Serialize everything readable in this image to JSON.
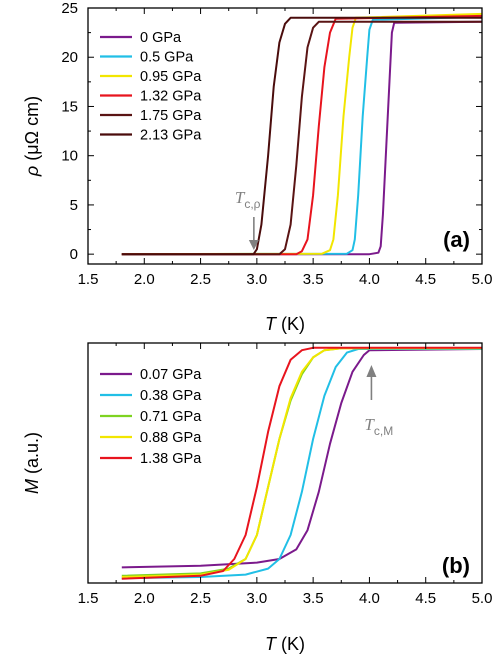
{
  "chart_data": [
    {
      "type": "line",
      "panel_label": "(a)",
      "xlabel_var": "T",
      "xlabel_unit": " (K)",
      "ylabel_var": "ρ",
      "ylabel_unit": " (μΩ cm)",
      "xlim": [
        1.5,
        5.0
      ],
      "ylim": [
        -1,
        25
      ],
      "xticks": [
        "1.5",
        "2.0",
        "2.5",
        "3.0",
        "3.5",
        "4.0",
        "4.5",
        "5.0"
      ],
      "yticks": [
        "0",
        "5",
        "10",
        "15",
        "20",
        "25"
      ],
      "grid": false,
      "legend_position": "top-left",
      "annotation": {
        "main": "T",
        "sub": "c,ρ",
        "x": 3.0
      },
      "series": [
        {
          "name": "0 GPa",
          "color": "#7b1a8c",
          "x": [
            1.8,
            4.0,
            4.08,
            4.1,
            4.12,
            4.15,
            4.18,
            4.2,
            4.22,
            5.0
          ],
          "y": [
            0.0,
            0.0,
            0.15,
            0.8,
            4.0,
            11.0,
            18.0,
            22.5,
            23.5,
            23.6
          ]
        },
        {
          "name": "0.5 GPa",
          "color": "#21bfe6",
          "x": [
            1.8,
            3.8,
            3.85,
            3.87,
            3.9,
            3.94,
            3.98,
            4.0,
            4.03,
            5.0
          ],
          "y": [
            0.0,
            0.05,
            0.4,
            1.5,
            6.0,
            14.0,
            20.0,
            22.8,
            23.8,
            24.1
          ]
        },
        {
          "name": "0.95 GPa",
          "color": "#f2e600",
          "x": [
            1.8,
            3.58,
            3.65,
            3.68,
            3.72,
            3.77,
            3.82,
            3.85,
            3.88,
            5.0
          ],
          "y": [
            0.0,
            0.05,
            0.4,
            1.5,
            6.0,
            14.0,
            20.0,
            23.0,
            24.0,
            24.4
          ]
        },
        {
          "name": "1.32 GPa",
          "color": "#e8141e",
          "x": [
            1.8,
            3.35,
            3.4,
            3.45,
            3.5,
            3.55,
            3.6,
            3.65,
            3.7,
            5.0
          ],
          "y": [
            0.0,
            0.0,
            0.3,
            1.5,
            6.0,
            13.0,
            19.0,
            22.5,
            23.9,
            24.2
          ]
        },
        {
          "name": "1.75 GPa",
          "color": "#5a1414",
          "x": [
            1.8,
            3.2,
            3.25,
            3.3,
            3.35,
            3.4,
            3.45,
            3.5,
            3.55,
            5.0
          ],
          "y": [
            0.0,
            0.0,
            0.5,
            3.0,
            9.0,
            16.0,
            21.0,
            23.0,
            23.6,
            23.6
          ]
        },
        {
          "name": "2.13 GPa",
          "color": "#4a0c0c",
          "x": [
            1.8,
            2.97,
            3.0,
            3.04,
            3.1,
            3.15,
            3.2,
            3.25,
            3.3,
            5.0
          ],
          "y": [
            0.0,
            0.0,
            0.5,
            3.0,
            10.0,
            17.0,
            21.5,
            23.4,
            24.0,
            24.0
          ]
        }
      ]
    },
    {
      "type": "line",
      "panel_label": "(b)",
      "xlabel_var": "T",
      "xlabel_unit": " (K)",
      "ylabel_var": "M",
      "ylabel_unit": " (a.u.)",
      "xlim": [
        1.5,
        5.0
      ],
      "ylim": [
        0,
        1.0
      ],
      "xticks": [
        "1.5",
        "2.0",
        "2.5",
        "3.0",
        "3.5",
        "4.0",
        "4.5",
        "5.0"
      ],
      "yticks": [],
      "grid": false,
      "legend_position": "top-left",
      "annotation": {
        "main": "T",
        "sub": "c,",
        "sub_italic": "M",
        "x": 4.0
      },
      "series": [
        {
          "name": "0.07 GPa",
          "color": "#7b1a8c",
          "x": [
            1.8,
            2.5,
            3.0,
            3.2,
            3.35,
            3.45,
            3.55,
            3.65,
            3.75,
            3.85,
            3.95,
            4.0,
            5.0
          ],
          "y": [
            0.065,
            0.072,
            0.085,
            0.1,
            0.14,
            0.22,
            0.38,
            0.58,
            0.75,
            0.88,
            0.95,
            0.97,
            0.975
          ]
        },
        {
          "name": "0.38 GPa",
          "color": "#21bfe6",
          "x": [
            1.8,
            2.5,
            2.9,
            3.1,
            3.2,
            3.3,
            3.4,
            3.5,
            3.6,
            3.7,
            3.8,
            3.9,
            5.0
          ],
          "y": [
            0.02,
            0.025,
            0.035,
            0.06,
            0.1,
            0.2,
            0.38,
            0.6,
            0.78,
            0.9,
            0.96,
            0.975,
            0.975
          ]
        },
        {
          "name": "0.71 GPa",
          "color": "#7ed321",
          "x": [
            1.8,
            2.5,
            2.75,
            2.9,
            3.0,
            3.1,
            3.2,
            3.3,
            3.4,
            3.5,
            3.6,
            3.75,
            5.0
          ],
          "y": [
            0.03,
            0.04,
            0.06,
            0.1,
            0.2,
            0.4,
            0.6,
            0.76,
            0.87,
            0.94,
            0.97,
            0.978,
            0.978
          ]
        },
        {
          "name": "0.88 GPa",
          "color": "#f2e600",
          "x": [
            1.8,
            2.5,
            2.75,
            2.9,
            3.0,
            3.1,
            3.2,
            3.3,
            3.4,
            3.5,
            3.6,
            3.75,
            5.0
          ],
          "y": [
            0.025,
            0.035,
            0.055,
            0.1,
            0.2,
            0.4,
            0.6,
            0.77,
            0.88,
            0.94,
            0.97,
            0.978,
            0.978
          ]
        },
        {
          "name": "1.38 GPa",
          "color": "#e8141e",
          "x": [
            1.8,
            2.5,
            2.7,
            2.8,
            2.9,
            3.0,
            3.1,
            3.2,
            3.3,
            3.4,
            3.5,
            3.6,
            5.0
          ],
          "y": [
            0.018,
            0.03,
            0.05,
            0.1,
            0.2,
            0.4,
            0.63,
            0.82,
            0.93,
            0.97,
            0.98,
            0.98,
            0.98
          ]
        }
      ]
    }
  ]
}
